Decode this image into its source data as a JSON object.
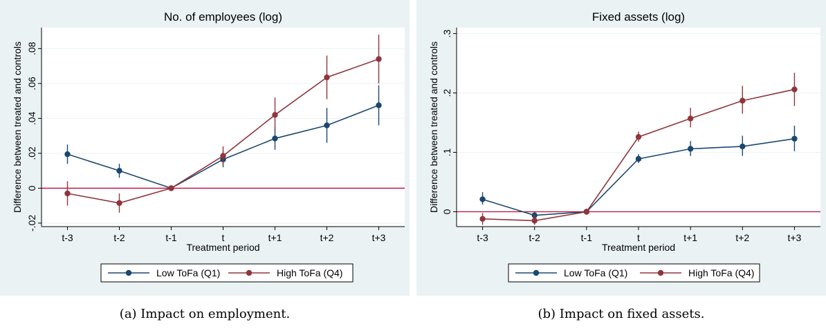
{
  "captions": [
    "(a) Impact on employment.",
    "(b) Impact on fixed assets."
  ],
  "colors": {
    "low": "#1a476f",
    "high": "#90353b",
    "zero_line": "#c10534",
    "panel_bg": "#eaf2f3",
    "plot_bg": "#ffffff",
    "grid": "#eaf2f3"
  },
  "chart_data": [
    {
      "type": "line",
      "title": "No. of employees (log)",
      "xlabel": "Treatment period",
      "ylabel": "Difference between treated and controls",
      "categories": [
        "t-3",
        "t-2",
        "t-1",
        "t",
        "t+1",
        "t+2",
        "t+3"
      ],
      "ylim": [
        -0.022,
        0.092
      ],
      "yticks": [
        -0.02,
        0,
        0.02,
        0.04,
        0.06,
        0.08
      ],
      "ytick_labels": [
        "-.02",
        "0",
        ".02",
        ".04",
        ".06",
        ".08"
      ],
      "grid": true,
      "legend_position": "bottom",
      "series": [
        {
          "name": "Low ToFa (Q1)",
          "color": "#1a476f",
          "values": [
            0.0195,
            0.01,
            0.0,
            0.0165,
            0.0285,
            0.036,
            0.0475
          ],
          "ci_low": [
            0.014,
            0.006,
            0.0,
            0.012,
            0.022,
            0.026,
            0.036
          ],
          "ci_high": [
            0.025,
            0.014,
            0.0,
            0.021,
            0.035,
            0.046,
            0.059
          ]
        },
        {
          "name": "High ToFa (Q4)",
          "color": "#90353b",
          "values": [
            -0.003,
            -0.0085,
            0.0,
            0.0185,
            0.042,
            0.0635,
            0.074
          ],
          "ci_low": [
            -0.01,
            -0.014,
            0.0,
            0.013,
            0.033,
            0.051,
            0.06
          ],
          "ci_high": [
            0.004,
            -0.003,
            0.0,
            0.024,
            0.052,
            0.076,
            0.088
          ]
        }
      ]
    },
    {
      "type": "line",
      "title": "Fixed assets (log)",
      "xlabel": "Treatment period",
      "ylabel": "Difference between treated and controls",
      "categories": [
        "t-3",
        "t-2",
        "t-1",
        "t",
        "t+1",
        "t+2",
        "t+3"
      ],
      "ylim": [
        -0.025,
        0.31
      ],
      "yticks": [
        0,
        0.1,
        0.2,
        0.3
      ],
      "ytick_labels": [
        "0",
        ".1",
        ".2",
        ".3"
      ],
      "grid": true,
      "legend_position": "bottom",
      "series": [
        {
          "name": "Low ToFa (Q1)",
          "color": "#1a476f",
          "values": [
            0.021,
            -0.006,
            0.0,
            0.089,
            0.106,
            0.11,
            0.123
          ],
          "ci_low": [
            0.012,
            -0.012,
            0.0,
            0.082,
            0.094,
            0.094,
            0.102
          ],
          "ci_high": [
            0.033,
            0.0,
            0.0,
            0.097,
            0.119,
            0.128,
            0.145
          ]
        },
        {
          "name": "High ToFa (Q4)",
          "color": "#90353b",
          "values": [
            -0.012,
            -0.015,
            0.0,
            0.126,
            0.157,
            0.187,
            0.206
          ],
          "ci_low": [
            -0.022,
            -0.022,
            0.0,
            0.118,
            0.142,
            0.165,
            0.178
          ],
          "ci_high": [
            -0.002,
            -0.005,
            0.0,
            0.135,
            0.175,
            0.212,
            0.234
          ]
        }
      ]
    }
  ]
}
